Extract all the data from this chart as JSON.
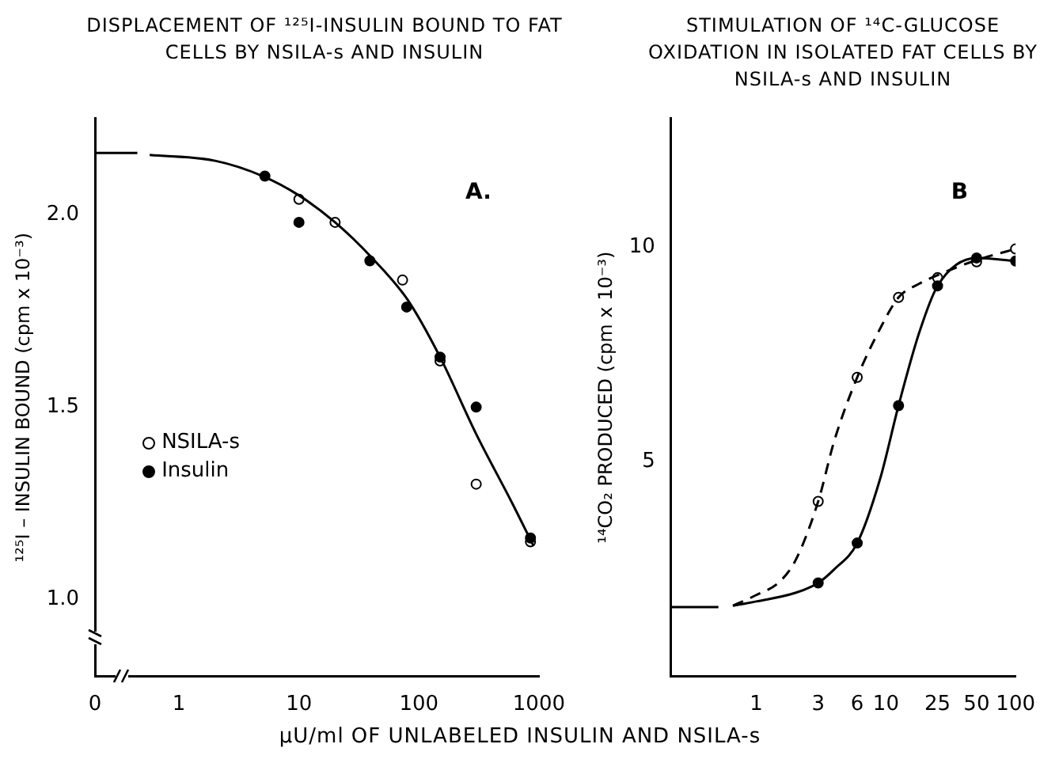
{
  "chart_data": [
    {
      "type": "scatter",
      "title": "DISPLACEMENT OF ¹²⁵I-INSULIN BOUND TO FAT CELLS BY NSILA-s AND INSULIN",
      "xlabel": "μU/ml OF UNLABELED INSULIN AND NSILA-s",
      "ylabel": "¹²⁵I – INSULIN BOUND (cpm x 10⁻³)",
      "annotations": [
        "A."
      ],
      "log": "x",
      "xlim": [
        0.2,
        1000
      ],
      "xticks": [
        {
          "value": 0.2,
          "label": "0"
        },
        1,
        10,
        100,
        1000
      ],
      "ylim": [
        0.8,
        2.25
      ],
      "yticks": [
        {
          "value": 1,
          "label": "1.0"
        },
        1.5,
        {
          "value": 2,
          "label": "2.0"
        }
      ],
      "legend": "left",
      "series": [
        {
          "name": "NSILA-s",
          "marker": "circle",
          "color": "#000000",
          "x": [
            10,
            20,
            73,
            150,
            300,
            850
          ],
          "values": [
            2.04,
            1.98,
            1.83,
            1.62,
            1.3,
            1.15
          ]
        },
        {
          "name": "Insulin",
          "marker": "circle",
          "color": "#000000",
          "x": [
            5.2,
            10,
            39,
            79,
            150,
            300,
            850
          ],
          "values": [
            2.1,
            1.98,
            1.88,
            1.76,
            1.63,
            1.5,
            1.16
          ]
        },
        {
          "type": "line",
          "color": "#000000",
          "x": [
            0.2,
            0.45,
            0.5,
            0.57,
            2,
            5,
            10,
            20,
            40,
            80,
            150,
            300,
            600,
            900
          ],
          "values": [
            2.16,
            2.16,
            null,
            2.155,
            2.14,
            2.1,
            2.05,
            1.98,
            1.89,
            1.78,
            1.63,
            1.43,
            1.25,
            1.14
          ]
        }
      ]
    },
    {
      "type": "scatter",
      "title": "STIMULATION OF ¹⁴C-GLUCOSE OXIDATION IN ISOLATED FAT CELLS BY NSILA-s AND INSULIN",
      "ylabel": "¹⁴CO₂ PRODUCED (cpm x 10⁻³)",
      "annotations": [
        "B"
      ],
      "log": "x",
      "xlim": [
        0.22,
        100
      ],
      "xticks": [
        1,
        3,
        6,
        10,
        25,
        50,
        100
      ],
      "ylim": [
        0,
        13
      ],
      "yticks": [
        5,
        10
      ],
      "series": [
        {
          "marker": "circle",
          "color": "#000000",
          "x": [
            3,
            6,
            12.5,
            25,
            50,
            100
          ],
          "values": [
            4.08,
            6.97,
            8.83,
            9.29,
            9.66,
            9.96
          ]
        },
        {
          "marker": "circle",
          "color": "#000000",
          "x": [
            3,
            6,
            12.5,
            25,
            50,
            100
          ],
          "values": [
            2.18,
            3.11,
            6.31,
            9.1,
            9.75,
            9.68
          ]
        },
        {
          "type": "line",
          "line_style": "dashed",
          "color": "#000000",
          "x": [
            0.66,
            1,
            1.5,
            2,
            3,
            4,
            6,
            9,
            12.5,
            18,
            25,
            50,
            100
          ],
          "values": [
            1.65,
            1.9,
            2.2,
            2.7,
            4.08,
            5.5,
            6.97,
            8.1,
            8.83,
            9.15,
            9.35,
            9.7,
            9.96
          ]
        },
        {
          "type": "line",
          "color": "#000000",
          "x": [
            0.22,
            0.51,
            0.6,
            0.66,
            1,
            2,
            3,
            4,
            6,
            9,
            12.5,
            18,
            25,
            50,
            100
          ],
          "values": [
            1.62,
            1.62,
            null,
            1.65,
            1.75,
            1.95,
            2.18,
            2.5,
            3.11,
            4.6,
            6.31,
            8.0,
            9.1,
            9.75,
            9.68
          ]
        }
      ]
    }
  ]
}
